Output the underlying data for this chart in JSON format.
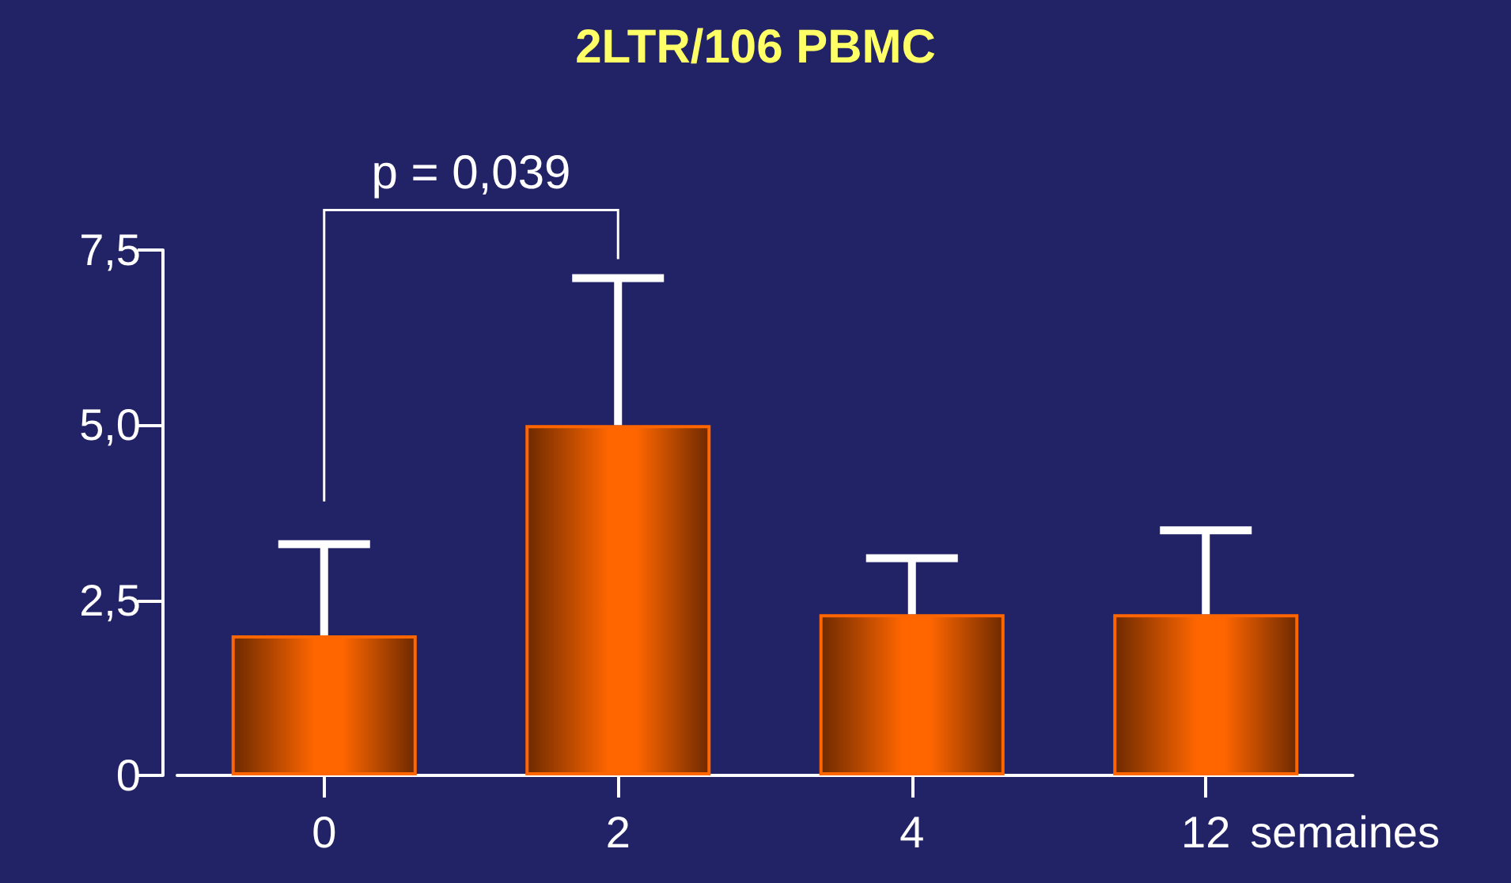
{
  "chart_data": {
    "type": "bar",
    "title": "2LTR/106 PBMC",
    "categories": [
      "0",
      "2",
      "4",
      "12"
    ],
    "xlabel": "semaines",
    "values": [
      2.0,
      5.0,
      2.3,
      2.3
    ],
    "errors": [
      [
        2.0,
        3.3
      ],
      [
        5.0,
        7.1
      ],
      [
        2.3,
        3.1
      ],
      [
        2.3,
        3.5
      ]
    ],
    "color": "#ff6600",
    "ylim": [
      0,
      7.5
    ],
    "yticks": [
      {
        "value": 0,
        "label": "0"
      },
      {
        "value": 2.5,
        "label": "2,5"
      },
      {
        "value": 5,
        "label": "5,0"
      },
      {
        "value": 7.5,
        "label": "7,5"
      }
    ],
    "annotations": [
      "p = 0,039"
    ],
    "grid": false
  }
}
